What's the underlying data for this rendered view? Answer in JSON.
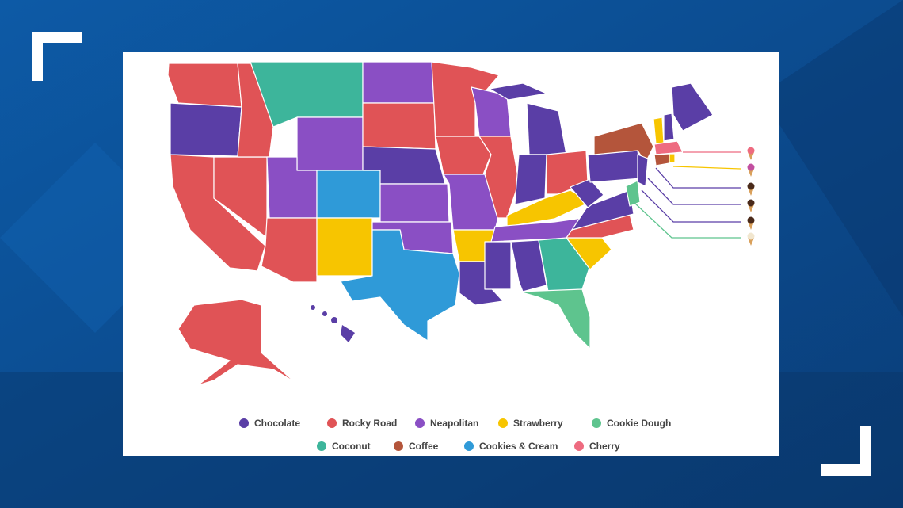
{
  "legend": [
    {
      "name": "Chocolate",
      "color": "#5a3ea6"
    },
    {
      "name": "Rocky Road",
      "color": "#e05356"
    },
    {
      "name": "Neapolitan",
      "color": "#8a4fc4"
    },
    {
      "name": "Strawberry",
      "color": "#f7c500"
    },
    {
      "name": "Cookie Dough",
      "color": "#5ec48e"
    },
    {
      "name": "Coconut",
      "color": "#3db59b"
    },
    {
      "name": "Coffee",
      "color": "#b4553b"
    },
    {
      "name": "Cookies & Cream",
      "color": "#2f9ad8"
    },
    {
      "name": "Cherry",
      "color": "#ee6b80"
    }
  ]
}
